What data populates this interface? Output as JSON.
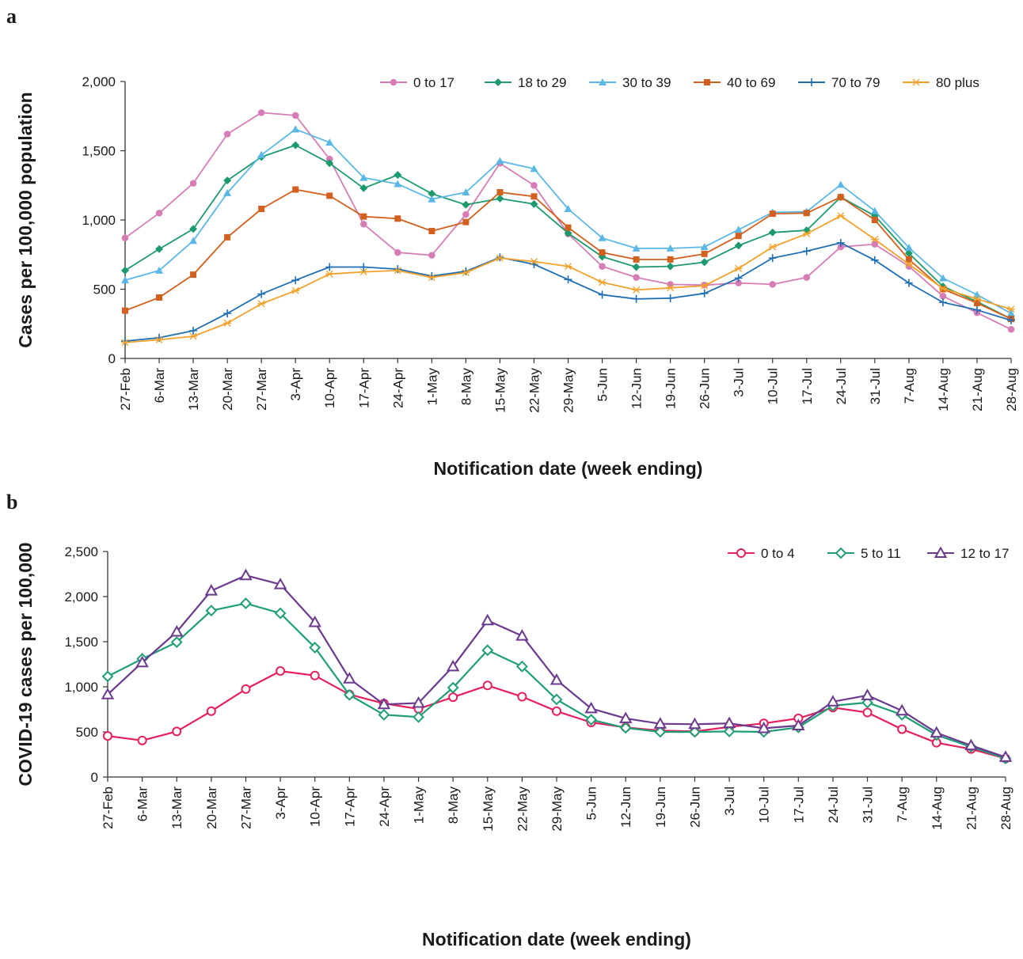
{
  "chart_data": [
    {
      "panel": "a",
      "type": "line",
      "title": "",
      "xlabel": "Notification date (week ending)",
      "ylabel": "Cases per 100,000 population",
      "ylim": [
        0,
        2000
      ],
      "yticks": [
        0,
        500,
        1000,
        1500,
        2000
      ],
      "ytick_labels": [
        "0",
        "500",
        "1,000",
        "1,500",
        "2,000"
      ],
      "grid": false,
      "legend": "top-right",
      "categories": [
        "27-Feb",
        "6-Mar",
        "13-Mar",
        "20-Mar",
        "27-Mar",
        "3-Apr",
        "10-Apr",
        "17-Apr",
        "24-Apr",
        "1-May",
        "8-May",
        "15-May",
        "22-May",
        "29-May",
        "5-Jun",
        "12-Jun",
        "19-Jun",
        "26-Jun",
        "3-Jul",
        "10-Jul",
        "17-Jul",
        "24-Jul",
        "31-Jul",
        "7-Aug",
        "14-Aug",
        "21-Aug",
        "28-Aug"
      ],
      "series": [
        {
          "name": "0 to 17",
          "color": "#d67db5",
          "marker": "circle",
          "values": [
            870,
            1050,
            1265,
            1620,
            1775,
            1755,
            1440,
            970,
            765,
            745,
            1040,
            1410,
            1250,
            900,
            665,
            585,
            535,
            530,
            545,
            535,
            585,
            805,
            825,
            665,
            450,
            330,
            210
          ]
        },
        {
          "name": "18 to 29",
          "color": "#1c9a6c",
          "marker": "diamond",
          "values": [
            635,
            790,
            935,
            1285,
            1455,
            1540,
            1410,
            1230,
            1325,
            1190,
            1110,
            1155,
            1115,
            905,
            735,
            660,
            665,
            695,
            815,
            910,
            925,
            1165,
            1030,
            760,
            520,
            410,
            285
          ]
        },
        {
          "name": "30 to 39",
          "color": "#5bb8e6",
          "marker": "triangle",
          "values": [
            565,
            635,
            850,
            1195,
            1470,
            1655,
            1560,
            1305,
            1260,
            1150,
            1200,
            1425,
            1370,
            1080,
            870,
            795,
            795,
            805,
            930,
            1055,
            1060,
            1255,
            1065,
            800,
            580,
            460,
            325
          ]
        },
        {
          "name": "40 to 69",
          "color": "#d2601f",
          "marker": "square",
          "values": [
            345,
            440,
            605,
            875,
            1080,
            1220,
            1175,
            1025,
            1010,
            920,
            985,
            1200,
            1170,
            945,
            765,
            715,
            715,
            755,
            885,
            1045,
            1050,
            1165,
            1000,
            715,
            500,
            400,
            285
          ]
        },
        {
          "name": "70 to 79",
          "color": "#1f6fb5",
          "marker": "plus",
          "values": [
            125,
            150,
            200,
            325,
            465,
            565,
            660,
            660,
            645,
            595,
            630,
            730,
            680,
            570,
            460,
            430,
            435,
            470,
            580,
            725,
            775,
            835,
            710,
            545,
            405,
            350,
            275
          ]
        },
        {
          "name": "80 plus",
          "color": "#f2a12b",
          "marker": "star",
          "values": [
            115,
            135,
            160,
            255,
            395,
            490,
            610,
            625,
            635,
            585,
            620,
            725,
            700,
            665,
            550,
            495,
            510,
            525,
            650,
            805,
            900,
            1030,
            860,
            680,
            505,
            430,
            355
          ]
        }
      ]
    },
    {
      "panel": "b",
      "type": "line",
      "title": "",
      "xlabel": "Notification date (week ending)",
      "ylabel": "COVID-19 cases per 100,000",
      "ylim": [
        0,
        2500
      ],
      "yticks": [
        0,
        500,
        1000,
        1500,
        2000,
        2500
      ],
      "ytick_labels": [
        "0",
        "500",
        "1,000",
        "1,500",
        "2,000",
        "2,500"
      ],
      "grid": false,
      "legend": "top-right",
      "categories": [
        "27-Feb",
        "6-Mar",
        "13-Mar",
        "20-Mar",
        "27-Mar",
        "3-Apr",
        "10-Apr",
        "17-Apr",
        "24-Apr",
        "1-May",
        "8-May",
        "15-May",
        "22-May",
        "29-May",
        "5-Jun",
        "12-Jun",
        "19-Jun",
        "26-Jun",
        "3-Jul",
        "10-Jul",
        "17-Jul",
        "24-Jul",
        "31-Jul",
        "7-Aug",
        "14-Aug",
        "21-Aug",
        "28-Aug"
      ],
      "series": [
        {
          "name": "0 to 4",
          "color": "#e5205a",
          "marker": "circle-open",
          "values": [
            455,
            405,
            505,
            730,
            975,
            1175,
            1125,
            915,
            815,
            755,
            885,
            1015,
            890,
            730,
            605,
            550,
            515,
            505,
            555,
            595,
            650,
            770,
            715,
            530,
            380,
            310,
            205
          ]
        },
        {
          "name": "5 to 11",
          "color": "#1f9e76",
          "marker": "diamond-open",
          "values": [
            1115,
            1310,
            1495,
            1845,
            1925,
            1815,
            1435,
            910,
            690,
            665,
            990,
            1405,
            1225,
            860,
            635,
            545,
            500,
            500,
            505,
            500,
            550,
            790,
            825,
            690,
            465,
            335,
            205
          ]
        },
        {
          "name": "12 to 17",
          "color": "#6b3a8e",
          "marker": "triangle-open",
          "values": [
            915,
            1270,
            1610,
            2065,
            2235,
            2135,
            1715,
            1090,
            805,
            820,
            1225,
            1735,
            1565,
            1075,
            760,
            650,
            590,
            585,
            595,
            540,
            570,
            835,
            905,
            735,
            490,
            350,
            220
          ]
        }
      ]
    }
  ],
  "panel_letters": {
    "a": "a",
    "b": "b"
  }
}
